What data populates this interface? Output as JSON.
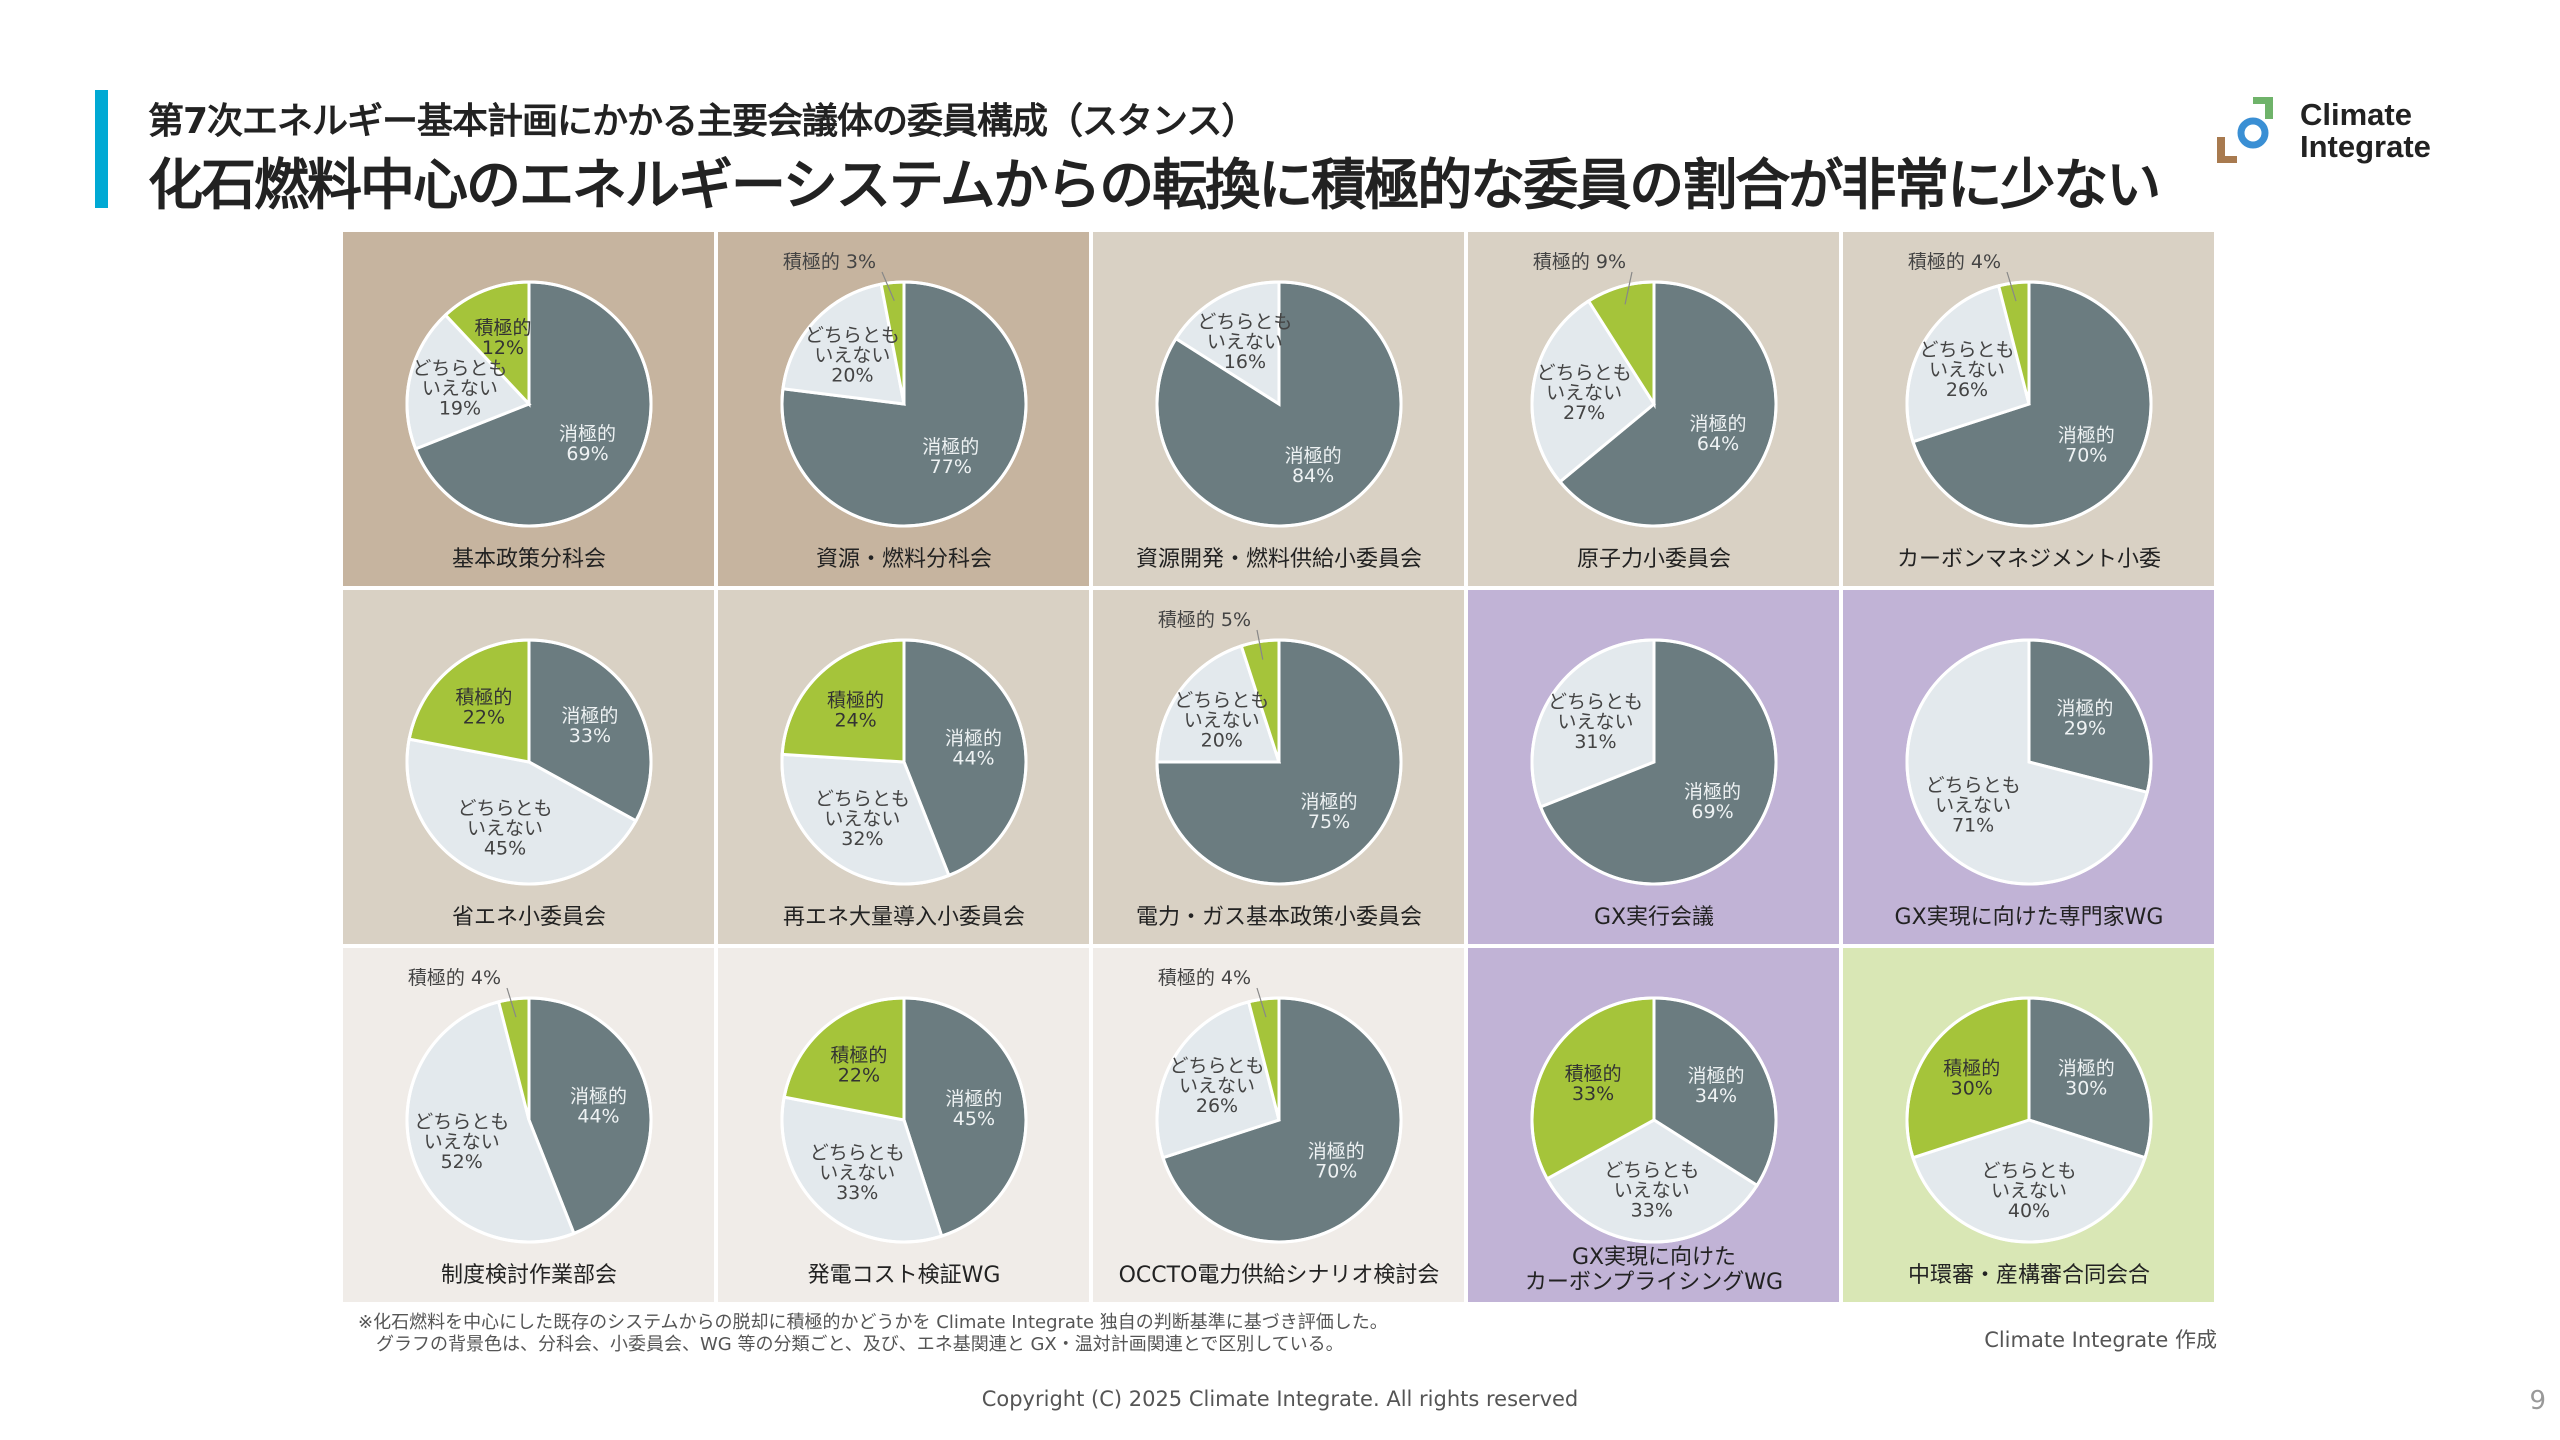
{
  "header": {
    "subtitle": "第7次エネルギー基本計画にかかる主要会議体の委員構成（スタンス）",
    "title": "化石燃料中心のエネルギーシステムからの転換に積極的な委員の割合が非常に少ない",
    "accent_color": "#00a9d4"
  },
  "logo": {
    "text": "Climate\nIntegrate"
  },
  "colors": {
    "negative": "#6b7c80",
    "neutral": "#e3e9ed",
    "positive": "#a5c43a",
    "bg_bunkakai": "#c6b49f",
    "bg_energy": "#d9d1c4",
    "bg_gx": "#c1b3d6",
    "bg_wg": "#f0ece8",
    "bg_env": "#d9e7b5"
  },
  "chart_data": {
    "type": "pie",
    "slice_order": [
      "消極的",
      "どちらとも\nいえない",
      "積極的"
    ],
    "unit": "%",
    "charts": [
      {
        "title": "基本政策分科会",
        "values": [
          69,
          19,
          12
        ],
        "bg": "bg_bunkakai"
      },
      {
        "title": "資源・燃料分科会",
        "values": [
          77,
          20,
          3
        ],
        "bg": "bg_bunkakai"
      },
      {
        "title": "資源開発・燃料供給小委員会",
        "values": [
          84,
          16,
          0
        ],
        "bg": "bg_energy"
      },
      {
        "title": "原子力小委員会",
        "values": [
          64,
          27,
          9
        ],
        "bg": "bg_energy"
      },
      {
        "title": "カーボンマネジメント小委",
        "values": [
          70,
          26,
          4
        ],
        "bg": "bg_energy"
      },
      {
        "title": "省エネ小委員会",
        "values": [
          33,
          45,
          22
        ],
        "bg": "bg_energy"
      },
      {
        "title": "再エネ大量導入小委員会",
        "values": [
          44,
          32,
          24
        ],
        "bg": "bg_energy"
      },
      {
        "title": "電力・ガス基本政策小委員会",
        "values": [
          75,
          20,
          5
        ],
        "bg": "bg_energy"
      },
      {
        "title": "GX実行会議",
        "values": [
          69,
          31,
          0
        ],
        "bg": "bg_gx"
      },
      {
        "title": "GX実現に向けた専門家WG",
        "values": [
          29,
          71,
          0
        ],
        "bg": "bg_gx"
      },
      {
        "title": "制度検討作業部会",
        "values": [
          44,
          52,
          4
        ],
        "bg": "bg_wg"
      },
      {
        "title": "発電コスト検証WG",
        "values": [
          45,
          33,
          22
        ],
        "bg": "bg_wg"
      },
      {
        "title": "OCCTO電力供給シナリオ検討会",
        "values": [
          70,
          26,
          4
        ],
        "bg": "bg_wg"
      },
      {
        "title": "GX実現に向けた\nカーボンプライシングWG",
        "values": [
          34,
          33,
          33
        ],
        "bg": "bg_gx"
      },
      {
        "title": "中環審・産構審合同会合",
        "values": [
          30,
          40,
          30
        ],
        "bg": "bg_env"
      }
    ]
  },
  "footer": {
    "note": "※化石燃料を中心にした既存のシステムからの脱却に積極的かどうかを Climate Integrate 独自の判断基準に基づき評価した。\n　グラフの背景色は、分科会、小委員会、WG 等の分類ごと、及び、エネ基関連と GX・温対計画関連とで区別している。",
    "credit": "Climate Integrate 作成",
    "copyright": "Copyright (C) 2025 Climate Integrate. All rights reserved",
    "page_number": "9"
  }
}
